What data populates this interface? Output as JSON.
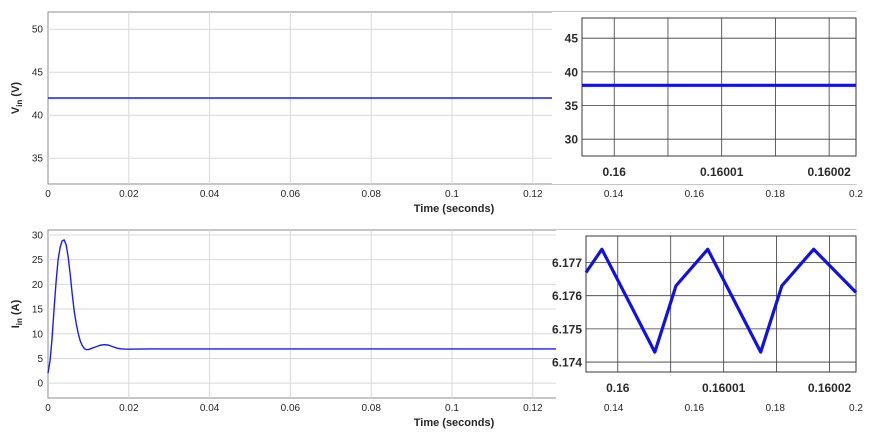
{
  "chart_data": [
    {
      "id": "vin_main",
      "type": "line",
      "xlabel": "Time (seconds)",
      "ylabel": "V",
      "ylabel_sub": "in",
      "ylabel_unit": "(V)",
      "xlim": [
        0,
        0.2
      ],
      "ylim": [
        32,
        52
      ],
      "xticks": [
        "0",
        "0.02",
        "0.04",
        "0.06",
        "0.08",
        "0.1",
        "0.12",
        "0.14",
        "0.16",
        "0.18",
        "0.2"
      ],
      "yticks": [
        "35",
        "40",
        "45",
        "50"
      ],
      "grid": true,
      "series": [
        {
          "color": "#1a1aff",
          "x": [
            0,
            0.2
          ],
          "y": [
            42,
            42
          ]
        }
      ]
    },
    {
      "id": "vin_inset",
      "type": "line",
      "xlim": [
        0.159997,
        0.1600225
      ],
      "ylim": [
        27.5,
        48
      ],
      "xticks": [
        "0.16",
        "0.16001",
        "0.16002"
      ],
      "yticks": [
        "30",
        "35",
        "40",
        "45"
      ],
      "grid": true,
      "series": [
        {
          "color": "#1010e8",
          "x": [
            0.159997,
            0.1600225
          ],
          "y": [
            38,
            38
          ]
        }
      ]
    },
    {
      "id": "iin_main",
      "type": "line",
      "xlabel": "Time (seconds)",
      "ylabel": "I",
      "ylabel_sub": "in",
      "ylabel_unit": "(A)",
      "xlim": [
        0,
        0.2
      ],
      "ylim": [
        -3,
        31
      ],
      "xticks": [
        "0",
        "0.02",
        "0.04",
        "0.06",
        "0.08",
        "0.1",
        "0.12",
        "0.14",
        "0.16",
        "0.18",
        "0.2"
      ],
      "yticks": [
        "0",
        "5",
        "10",
        "15",
        "20",
        "25",
        "30"
      ],
      "grid": true,
      "series": [
        {
          "color": "#1a1aff",
          "x": [
            0,
            0.0005,
            0.001,
            0.0015,
            0.002,
            0.0025,
            0.003,
            0.0035,
            0.004,
            0.0045,
            0.005,
            0.0055,
            0.006,
            0.0065,
            0.007,
            0.0075,
            0.008,
            0.0085,
            0.009,
            0.0095,
            0.01,
            0.011,
            0.012,
            0.013,
            0.014,
            0.015,
            0.016,
            0.017,
            0.018,
            0.019,
            0.02,
            0.022,
            0.025,
            0.03,
            0.04,
            0.06,
            0.08,
            0.1,
            0.12,
            0.14,
            0.16,
            0.18,
            0.2
          ],
          "y": [
            2,
            4.5,
            9,
            15,
            20.5,
            25,
            27.5,
            28.8,
            29,
            28,
            25.5,
            22,
            18,
            14.5,
            12,
            10,
            8.5,
            7.6,
            7.0,
            6.8,
            6.8,
            7.1,
            7.4,
            7.7,
            7.8,
            7.7,
            7.4,
            7.1,
            6.95,
            6.9,
            6.88,
            6.9,
            6.92,
            6.92,
            6.92,
            6.92,
            6.92,
            6.92,
            6.92,
            6.92,
            6.92,
            6.92,
            6.92
          ]
        }
      ]
    },
    {
      "id": "iin_inset",
      "type": "line",
      "xlim": [
        0.159997,
        0.1600225
      ],
      "ylim": [
        6.1737,
        6.1778
      ],
      "xticks": [
        "0.16",
        "0.16001",
        "0.16002"
      ],
      "yticks": [
        "6.174",
        "6.175",
        "6.176",
        "6.177"
      ],
      "grid": true,
      "series": [
        {
          "color": "#1010e8",
          "x": [
            0.159997,
            0.1599985,
            0.1600035,
            0.1600055,
            0.1600085,
            0.1600135,
            0.1600155,
            0.1600185,
            0.1600225
          ],
          "y": [
            6.1767,
            6.1774,
            6.1743,
            6.1763,
            6.1774,
            6.1743,
            6.1763,
            6.1774,
            6.1761
          ]
        }
      ]
    }
  ]
}
